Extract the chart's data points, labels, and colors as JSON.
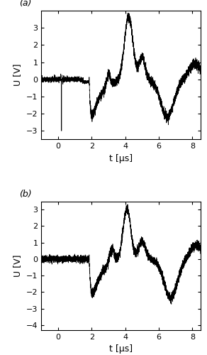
{
  "panel_a": {
    "label": "(a)",
    "xlim": [
      -1,
      8.5
    ],
    "ylim": [
      -3.5,
      4.0
    ],
    "yticks": [
      -3,
      -2,
      -1,
      0,
      1,
      2,
      3
    ],
    "xticks": [
      0,
      2,
      4,
      6,
      8
    ],
    "ylabel": "U [V]",
    "xlabel": "t [μs]"
  },
  "panel_b": {
    "label": "(b)",
    "xlim": [
      -1,
      8.5
    ],
    "ylim": [
      -4.3,
      3.5
    ],
    "yticks": [
      -4,
      -3,
      -2,
      -1,
      0,
      1,
      2,
      3
    ],
    "xticks": [
      0,
      2,
      4,
      6,
      8
    ],
    "ylabel": "U [V]",
    "xlabel": "t [μs]"
  },
  "fig_width": 2.92,
  "fig_height": 5.0,
  "dpi": 100,
  "line_color": "#000000",
  "line_width": 0.5,
  "bg_color": "#ffffff",
  "label_fontsize": 9,
  "tick_fontsize": 8
}
